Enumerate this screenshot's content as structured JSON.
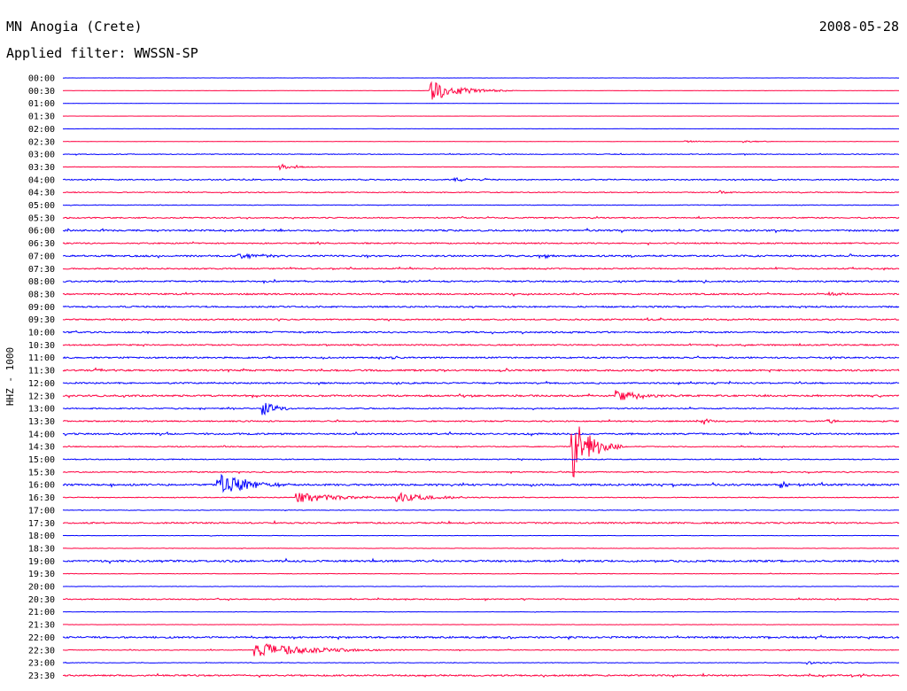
{
  "header": {
    "station": "MN Anogia (Crete)",
    "filter": "Applied filter: WWSSN-SP",
    "date": "2008-05-28"
  },
  "chart_data": {
    "type": "line",
    "title": "MN Anogia (Crete)",
    "subtitle": "Applied filter: WWSSN-SP",
    "date": "2008-05-28",
    "ylabel": "HHZ - 1000",
    "colors": [
      "#0000ff",
      "#ff0040"
    ],
    "grid": false,
    "rows": [
      {
        "label": "00:00",
        "noise": 0.1,
        "events": []
      },
      {
        "label": "00:30",
        "noise": 0.1,
        "events": [
          {
            "x": 0.44,
            "amp": 11,
            "dur": 0.035
          }
        ]
      },
      {
        "label": "01:00",
        "noise": 0.1,
        "events": []
      },
      {
        "label": "01:30",
        "noise": 0.1,
        "events": []
      },
      {
        "label": "02:00",
        "noise": 0.1,
        "events": []
      },
      {
        "label": "02:30",
        "noise": 0.15,
        "events": [
          {
            "x": 0.745,
            "amp": 1.2,
            "dur": 0.02
          },
          {
            "x": 0.815,
            "amp": 1.2,
            "dur": 0.02
          }
        ]
      },
      {
        "label": "03:00",
        "noise": 0.4,
        "events": []
      },
      {
        "label": "03:30",
        "noise": 0.2,
        "events": [
          {
            "x": 0.26,
            "amp": 4,
            "dur": 0.022
          }
        ]
      },
      {
        "label": "04:00",
        "noise": 0.6,
        "events": [
          {
            "x": 0.47,
            "amp": 2.5,
            "dur": 0.02
          }
        ]
      },
      {
        "label": "04:30",
        "noise": 0.5,
        "events": [
          {
            "x": 0.785,
            "amp": 2,
            "dur": 0.01
          }
        ]
      },
      {
        "label": "05:00",
        "noise": 0.3,
        "events": []
      },
      {
        "label": "05:30",
        "noise": 0.6,
        "events": []
      },
      {
        "label": "06:00",
        "noise": 0.9,
        "events": []
      },
      {
        "label": "06:30",
        "noise": 0.7,
        "events": []
      },
      {
        "label": "07:00",
        "noise": 0.9,
        "events": [
          {
            "x": 0.21,
            "amp": 3,
            "dur": 0.03
          },
          {
            "x": 0.57,
            "amp": 2.5,
            "dur": 0.02
          }
        ]
      },
      {
        "label": "07:30",
        "noise": 0.7,
        "events": []
      },
      {
        "label": "08:00",
        "noise": 0.8,
        "events": []
      },
      {
        "label": "08:30",
        "noise": 0.8,
        "events": [
          {
            "x": 0.918,
            "amp": 2,
            "dur": 0.015
          }
        ]
      },
      {
        "label": "09:00",
        "noise": 0.8,
        "events": []
      },
      {
        "label": "09:30",
        "noise": 0.7,
        "events": []
      },
      {
        "label": "10:00",
        "noise": 0.8,
        "events": []
      },
      {
        "label": "10:30",
        "noise": 0.7,
        "events": []
      },
      {
        "label": "11:00",
        "noise": 0.8,
        "events": []
      },
      {
        "label": "11:30",
        "noise": 0.9,
        "events": [
          {
            "x": 0.04,
            "amp": 2,
            "dur": 0.015
          }
        ]
      },
      {
        "label": "12:00",
        "noise": 0.8,
        "events": []
      },
      {
        "label": "12:30",
        "noise": 0.9,
        "events": [
          {
            "x": 0.66,
            "amp": 7,
            "dur": 0.03
          }
        ]
      },
      {
        "label": "13:00",
        "noise": 0.6,
        "events": [
          {
            "x": 0.24,
            "amp": 8,
            "dur": 0.015
          }
        ]
      },
      {
        "label": "13:30",
        "noise": 0.7,
        "events": [
          {
            "x": 0.765,
            "amp": 5,
            "dur": 0.012
          },
          {
            "x": 0.915,
            "amp": 3,
            "dur": 0.01
          }
        ]
      },
      {
        "label": "14:00",
        "noise": 0.9,
        "events": []
      },
      {
        "label": "14:30",
        "noise": 0.5,
        "events": [
          {
            "x": 0.61,
            "amp": 36,
            "dur": 0.02
          }
        ]
      },
      {
        "label": "15:00",
        "noise": 0.5,
        "events": []
      },
      {
        "label": "15:30",
        "noise": 0.6,
        "events": []
      },
      {
        "label": "16:00",
        "noise": 1.0,
        "events": [
          {
            "x": 0.185,
            "amp": 16,
            "dur": 0.03
          },
          {
            "x": 0.86,
            "amp": 3,
            "dur": 0.015
          }
        ]
      },
      {
        "label": "16:30",
        "noise": 0.4,
        "events": [
          {
            "x": 0.28,
            "amp": 6,
            "dur": 0.05
          },
          {
            "x": 0.4,
            "amp": 5,
            "dur": 0.045
          }
        ]
      },
      {
        "label": "17:00",
        "noise": 0.3,
        "events": []
      },
      {
        "label": "17:30",
        "noise": 0.8,
        "events": []
      },
      {
        "label": "18:00",
        "noise": 0.2,
        "events": []
      },
      {
        "label": "18:30",
        "noise": 0.2,
        "events": []
      },
      {
        "label": "19:00",
        "noise": 1.0,
        "events": []
      },
      {
        "label": "19:30",
        "noise": 0.3,
        "events": []
      },
      {
        "label": "20:00",
        "noise": 0.2,
        "events": []
      },
      {
        "label": "20:30",
        "noise": 0.6,
        "events": []
      },
      {
        "label": "21:00",
        "noise": 0.2,
        "events": []
      },
      {
        "label": "21:30",
        "noise": 0.2,
        "events": []
      },
      {
        "label": "22:00",
        "noise": 0.9,
        "events": []
      },
      {
        "label": "22:30",
        "noise": 0.4,
        "events": [
          {
            "x": 0.23,
            "amp": 9,
            "dur": 0.06
          }
        ]
      },
      {
        "label": "23:00",
        "noise": 0.3,
        "events": [
          {
            "x": 0.89,
            "amp": 1.5,
            "dur": 0.04
          }
        ]
      },
      {
        "label": "23:30",
        "noise": 0.8,
        "events": []
      }
    ]
  }
}
